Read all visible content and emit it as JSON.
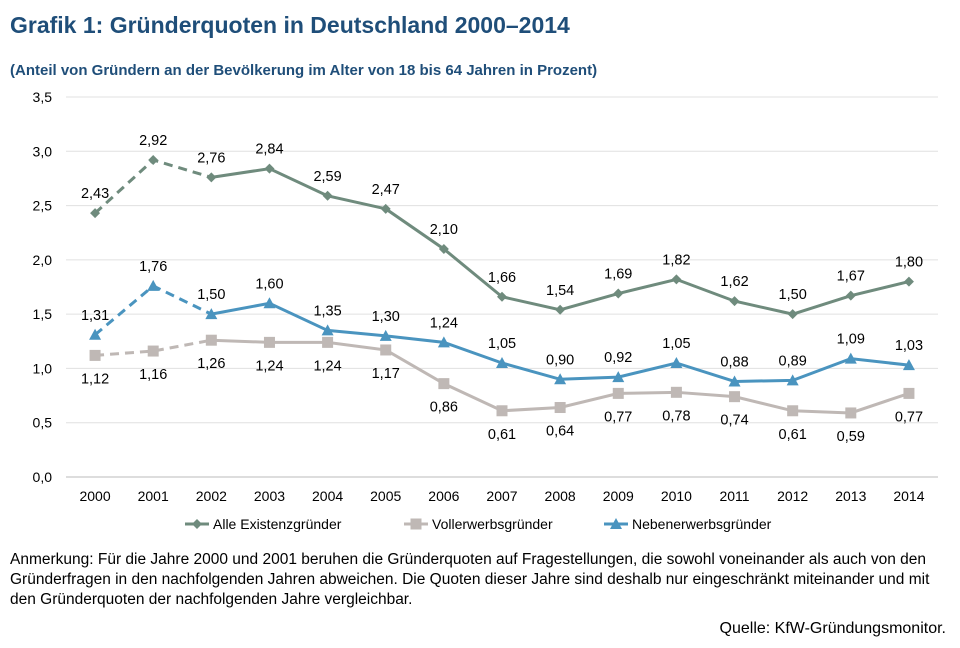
{
  "chart_data": {
    "type": "line",
    "title": "Grafik 1: Gründerquoten in Deutschland 2000–2014",
    "subtitle": "(Anteil von Gründern an der Bevölkerung im Alter von 18 bis 64 Jahren in Prozent)",
    "xlabel": "",
    "ylabel": "",
    "ylim": [
      0,
      3.5
    ],
    "yticks": [
      "0,0",
      "0,5",
      "1,0",
      "1,5",
      "2,0",
      "2,5",
      "3,0",
      "3,5"
    ],
    "categories": [
      "2000",
      "2001",
      "2002",
      "2003",
      "2004",
      "2005",
      "2006",
      "2007",
      "2008",
      "2009",
      "2010",
      "2011",
      "2012",
      "2013",
      "2014"
    ],
    "grid": true,
    "legend_position": "bottom",
    "dashed_until_category": "2002",
    "series": [
      {
        "name": "Alle Existenzgründer",
        "color": "#6f8b7d",
        "marker": "diamond",
        "values": [
          2.43,
          2.92,
          2.76,
          2.84,
          2.59,
          2.47,
          2.1,
          1.66,
          1.54,
          1.69,
          1.82,
          1.62,
          1.5,
          1.67,
          1.8
        ],
        "labels": [
          "2,43",
          "2,92",
          "2,76",
          "2,84",
          "2,59",
          "2,47",
          "2,10",
          "1,66",
          "1,54",
          "1,69",
          "1,82",
          "1,62",
          "1,50",
          "1,67",
          "1,80"
        ]
      },
      {
        "name": "Vollerwerbsgründer",
        "color": "#bfb8b5",
        "marker": "square",
        "values": [
          1.12,
          1.16,
          1.26,
          1.24,
          1.24,
          1.17,
          0.86,
          0.61,
          0.64,
          0.77,
          0.78,
          0.74,
          0.61,
          0.59,
          0.77
        ],
        "labels": [
          "1,12",
          "1,16",
          "1,26",
          "1,24",
          "1,24",
          "1,17",
          "0,86",
          "0,61",
          "0,64",
          "0,77",
          "0,78",
          "0,74",
          "0,61",
          "0,59",
          "0,77"
        ]
      },
      {
        "name": "Nebenerwerbsgründer",
        "color": "#4a94bf",
        "marker": "triangle",
        "values": [
          1.31,
          1.76,
          1.5,
          1.6,
          1.35,
          1.3,
          1.24,
          1.05,
          0.9,
          0.92,
          1.05,
          0.88,
          0.89,
          1.09,
          1.03
        ],
        "labels": [
          "1,31",
          "1,76",
          "1,50",
          "1,60",
          "1,35",
          "1,30",
          "1,24",
          "1,05",
          "0,90",
          "0,92",
          "1,05",
          "0,88",
          "0,89",
          "1,09",
          "1,03"
        ]
      }
    ]
  },
  "note": "Anmerkung: Für die Jahre 2000 und 2001 beruhen die Gründerquoten auf Fragestellungen, die sowohl voneinander als auch von den Gründerfragen in den nachfolgenden Jahren abweichen. Die Quoten dieser Jahre sind deshalb nur eingeschränkt miteinander und mit den Gründerquoten der nachfolgenden Jahre vergleichbar.",
  "source": "Quelle: KfW-Gründungsmonitor."
}
